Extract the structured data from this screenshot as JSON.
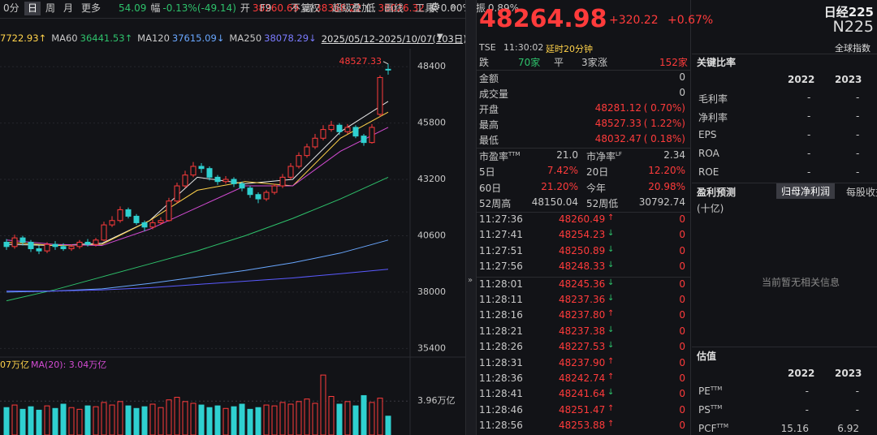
{
  "toolbar": {
    "tabs": [
      "0分",
      "日",
      "周",
      "月",
      "更多"
    ],
    "active": 1,
    "stats": [
      [
        "",
        "54.09"
      ],
      [
        "幅",
        "-0.13%(-49.14)"
      ],
      [
        "开",
        "38260.69"
      ],
      [
        "高",
        "38368.22"
      ],
      [
        "低",
        "38026.32"
      ],
      [
        "换",
        "0.00%"
      ],
      [
        "振",
        "0.89%"
      ]
    ],
    "tools": [
      "F9",
      "不复权",
      "超级叠加",
      "画线",
      "工具"
    ]
  },
  "kline": {
    "legend": [
      {
        "label": "",
        "value": "7722.93↑",
        "color": "#ffd24a"
      },
      {
        "label": "MA60",
        "value": "36441.53↑",
        "color": "#2ec16b"
      },
      {
        "label": "MA120",
        "value": "37615.09↓",
        "color": "#69a7ff"
      },
      {
        "label": "MA250",
        "value": "38078.29↓",
        "color": "#7b7bff"
      }
    ],
    "range": "2025/05/12-2025/10/07(103日)",
    "ylim": [
      35000,
      49230
    ],
    "yticks": [
      48400,
      45800,
      43200,
      40600,
      38000,
      35400
    ],
    "high_label": "48527.33",
    "up_color": "#ff3b3b",
    "down_color": "#2fd0d0",
    "candles": [
      [
        40300,
        40100,
        40450,
        39950
      ],
      [
        40100,
        40500,
        40650,
        40000
      ],
      [
        40500,
        40300,
        40600,
        40150
      ],
      [
        40300,
        40000,
        40400,
        39850
      ],
      [
        40000,
        39900,
        40150,
        39750
      ],
      [
        39900,
        40200,
        40300,
        39800
      ],
      [
        40200,
        40100,
        40350,
        39950
      ],
      [
        40100,
        40000,
        40250,
        39900
      ],
      [
        40000,
        40100,
        40200,
        39900
      ],
      [
        40100,
        40300,
        40400,
        40000
      ],
      [
        40300,
        40200,
        40450,
        40100
      ],
      [
        40200,
        40400,
        40500,
        40100
      ],
      [
        40400,
        41100,
        41250,
        40350
      ],
      [
        41100,
        41300,
        41500,
        41000
      ],
      [
        41300,
        41800,
        41950,
        41200
      ],
      [
        41800,
        41500,
        41900,
        41400
      ],
      [
        41500,
        41200,
        41600,
        41100
      ],
      [
        41200,
        41000,
        41300,
        40800
      ],
      [
        41000,
        41200,
        41350,
        40900
      ],
      [
        41200,
        41300,
        41450,
        41100
      ],
      [
        41300,
        42200,
        42350,
        41250
      ],
      [
        42200,
        42900,
        43050,
        42100
      ],
      [
        42900,
        43400,
        43600,
        42800
      ],
      [
        43400,
        43800,
        44000,
        43300
      ],
      [
        43800,
        43700,
        43950,
        43500
      ],
      [
        43700,
        43300,
        43800,
        43150
      ],
      [
        43300,
        43100,
        43400,
        42950
      ],
      [
        43100,
        43200,
        43350,
        43000
      ],
      [
        43200,
        43000,
        43300,
        42850
      ],
      [
        43000,
        42800,
        43100,
        42650
      ],
      [
        42800,
        42500,
        42900,
        42350
      ],
      [
        42500,
        42300,
        42600,
        42100
      ],
      [
        42300,
        42600,
        42700,
        42200
      ],
      [
        42600,
        42900,
        43000,
        42500
      ],
      [
        42900,
        43300,
        43450,
        42800
      ],
      [
        43300,
        43800,
        43950,
        43200
      ],
      [
        43800,
        44300,
        44450,
        43700
      ],
      [
        44300,
        44700,
        44850,
        44200
      ],
      [
        44700,
        45100,
        45300,
        44600
      ],
      [
        45100,
        45500,
        45700,
        45000
      ],
      [
        45500,
        45700,
        45900,
        45400
      ],
      [
        45700,
        45400,
        45800,
        45250
      ],
      [
        45400,
        45600,
        45750,
        45300
      ],
      [
        45600,
        45200,
        45700,
        45100
      ],
      [
        45200,
        44900,
        45300,
        44750
      ],
      [
        44900,
        45600,
        45750,
        44850
      ],
      [
        46200,
        47900,
        48000,
        46100
      ],
      [
        48281.12,
        48264.98,
        48527.33,
        48032.47
      ]
    ],
    "ma_lines": [
      {
        "color": "#e8e8e8",
        "values": [
          40200,
          40150,
          40250,
          41300,
          43300,
          43000,
          43200,
          45400,
          46800
        ]
      },
      {
        "color": "#ffd24a",
        "values": [
          40300,
          40150,
          40200,
          41300,
          42700,
          43100,
          42900,
          45100,
          46300
        ]
      },
      {
        "color": "#d34bd3",
        "values": [
          40400,
          40200,
          40150,
          40900,
          41900,
          42900,
          42900,
          44500,
          45600
        ]
      },
      {
        "color": "#2ec16b",
        "values": [
          37600,
          38100,
          38700,
          39300,
          39900,
          40600,
          41400,
          42300,
          43300
        ]
      },
      {
        "color": "#69a7ff",
        "values": [
          38000,
          38050,
          38150,
          38400,
          38700,
          39000,
          39350,
          39800,
          40400
        ]
      },
      {
        "color": "#5a5aff",
        "values": [
          38050,
          38050,
          38100,
          38200,
          38350,
          38500,
          38650,
          38850,
          39050
        ]
      }
    ]
  },
  "volume": {
    "legend": [
      {
        "text": "07万亿",
        "color": "#ffd24a"
      },
      {
        "text": "MA(20): 3.04万亿",
        "color": "#d34bd3"
      }
    ],
    "ylim": [
      0,
      7.2
    ],
    "yticks": [
      {
        "value": 3.96,
        "label": "3.96万亿"
      }
    ],
    "values": [
      3.2,
      3.5,
      3.0,
      3.3,
      2.9,
      3.4,
      3.1,
      3.6,
      3.2,
      3.0,
      3.4,
      3.3,
      3.8,
      3.5,
      3.9,
      3.4,
      3.1,
      3.3,
      3.6,
      3.2,
      4.1,
      4.4,
      3.9,
      3.7,
      3.5,
      3.2,
      3.4,
      3.1,
      3.3,
      3.6,
      3.0,
      3.2,
      3.5,
      3.4,
      3.8,
      3.6,
      3.9,
      4.2,
      3.7,
      7.0,
      4.5,
      3.6,
      3.9,
      3.4,
      4.6,
      3.8,
      4.3,
      2.2
    ]
  },
  "quote": {
    "price": "48264.98",
    "change": "+320.22",
    "pct": "+0.67%",
    "exchange": "TSE",
    "time": "11:30:02",
    "delay": "延时20分钟",
    "breadth": [
      [
        "跌",
        "70家"
      ],
      [
        "平",
        "3家"
      ],
      [
        "涨",
        "152家"
      ]
    ],
    "rows": [
      {
        "label": "金额",
        "value": "0",
        "pct": ""
      },
      {
        "label": "成交量",
        "value": "0",
        "pct": ""
      },
      {
        "label": "开盘",
        "value": "48281.12",
        "pct": "( 0.70%)"
      },
      {
        "label": "最高",
        "value": "48527.33",
        "pct": "( 1.22%)"
      },
      {
        "label": "最低",
        "value": "48032.47",
        "pct": "( 0.18%)"
      }
    ],
    "stats": [
      [
        [
          "市盈率",
          "TTM",
          "21.0"
        ],
        [
          "市净率",
          "LF",
          "2.34"
        ]
      ],
      [
        [
          "5日",
          "",
          "7.42%"
        ],
        [
          "20日",
          "",
          "12.20%"
        ]
      ],
      [
        [
          "60日",
          "",
          "21.20%"
        ],
        [
          "今年",
          "",
          "20.98%"
        ]
      ],
      [
        [
          "52周高",
          "",
          "48150.04"
        ],
        [
          "52周低",
          "",
          "30792.74"
        ]
      ]
    ],
    "ticks": [
      [
        "11:27:36",
        "48260.49",
        "↑",
        "0"
      ],
      [
        "11:27:41",
        "48254.23",
        "↓",
        "0"
      ],
      [
        "11:27:51",
        "48250.89",
        "↓",
        "0"
      ],
      [
        "11:27:56",
        "48248.33",
        "↓",
        "0"
      ],
      [
        "11:28:01",
        "48245.36",
        "↓",
        "0"
      ],
      [
        "11:28:11",
        "48237.36",
        "↓",
        "0"
      ],
      [
        "11:28:16",
        "48237.80",
        "↑",
        "0"
      ],
      [
        "11:28:21",
        "48237.38",
        "↓",
        "0"
      ],
      [
        "11:28:26",
        "48227.53",
        "↓",
        "0"
      ],
      [
        "11:28:31",
        "48237.90",
        "↑",
        "0"
      ],
      [
        "11:28:36",
        "48242.74",
        "↑",
        "0"
      ],
      [
        "11:28:41",
        "48241.64",
        "↓",
        "0"
      ],
      [
        "11:28:46",
        "48251.47",
        "↑",
        "0"
      ],
      [
        "11:28:56",
        "48253.88",
        "↑",
        "0"
      ]
    ]
  },
  "info": {
    "name": "日经225",
    "code": "N225",
    "kind": "全球指数",
    "ratios": {
      "title": "关键比率",
      "years": [
        "2022",
        "2023"
      ],
      "rows": [
        [
          "毛利率",
          "-",
          "-"
        ],
        [
          "净利率",
          "-",
          "-"
        ],
        [
          "EPS",
          "-",
          "-"
        ],
        [
          "ROA",
          "-",
          "-"
        ],
        [
          "ROE",
          "-",
          "-"
        ]
      ]
    },
    "forecast": {
      "title": "盈利预测",
      "tabs": [
        "归母净利润",
        "每股收益"
      ],
      "unit": "(十亿)",
      "empty": "当前暂无相关信息"
    },
    "valuation": {
      "title": "估值",
      "years": [
        "2022",
        "2023"
      ],
      "rows": [
        [
          "PE",
          "TTM",
          "-",
          "-"
        ],
        [
          "PS",
          "TTM",
          "-",
          "-"
        ],
        [
          "PCF",
          "TTM",
          "15.16",
          "6.92"
        ]
      ]
    }
  }
}
